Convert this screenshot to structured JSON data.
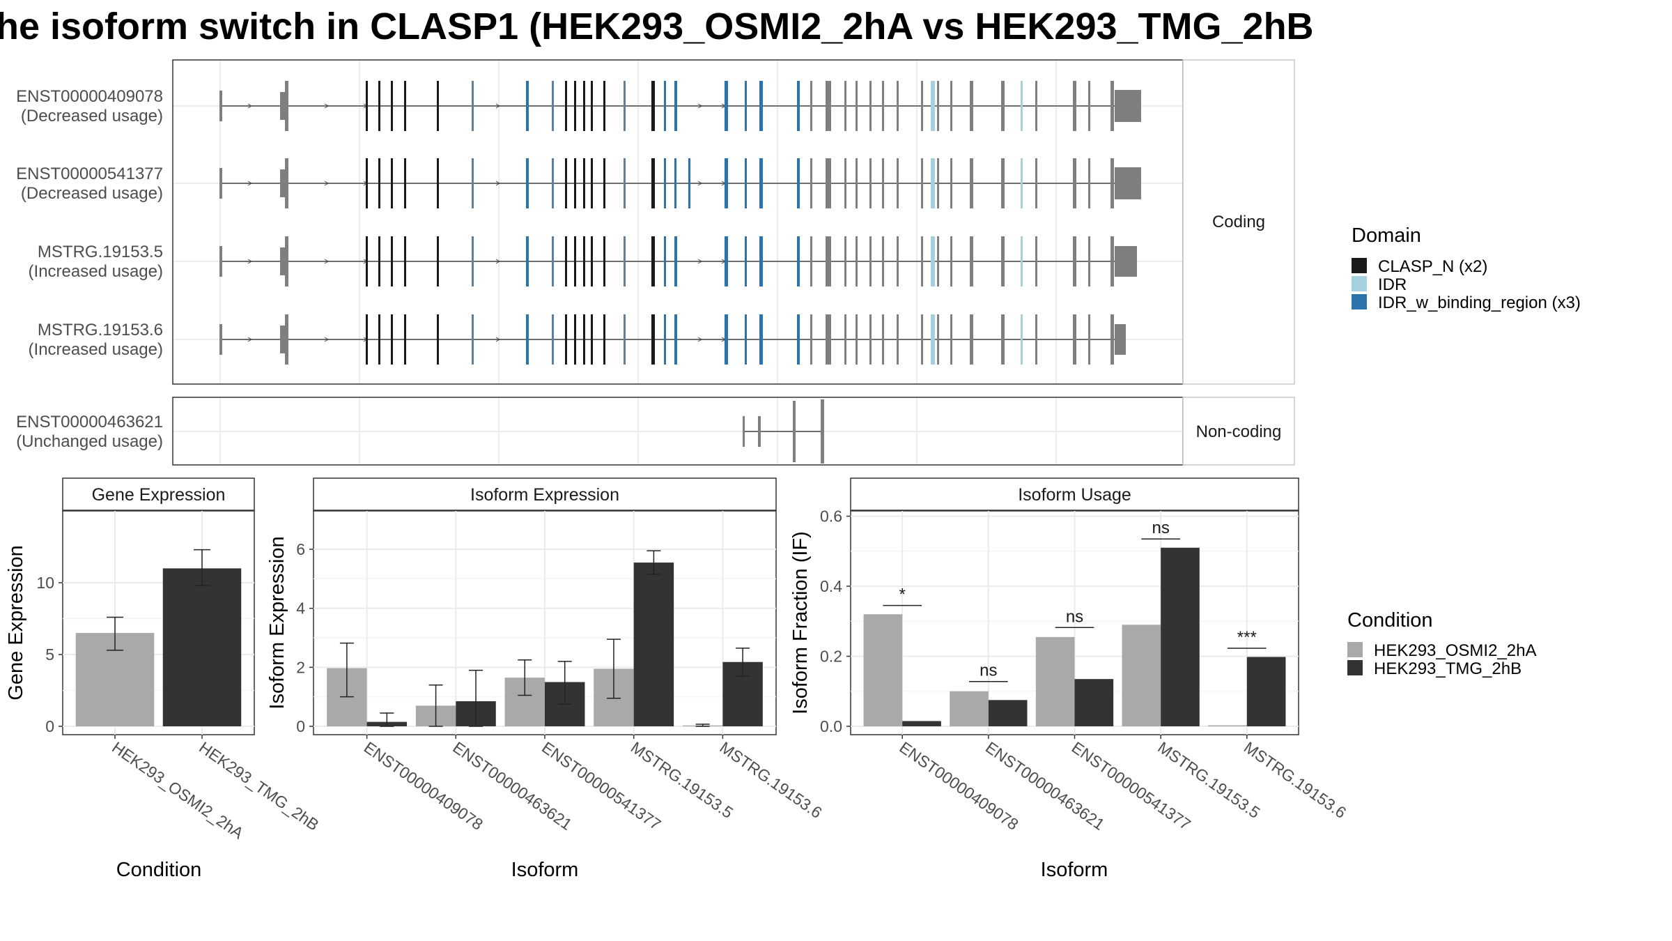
{
  "title": "he isoform switch in CLASP1 (HEK293_OSMI2_2hA vs HEK293_TMG_2hB",
  "colors": {
    "clasp_n": "#1a1a1a",
    "idr": "#a6cfe0",
    "idr_binding": "#2a73ad",
    "grey_block": "#7f7f7f",
    "cond_a": "#a9a9a9",
    "cond_b": "#333333",
    "utr_line": "#7f7f7f",
    "muted_exon": "#5f7f9f"
  },
  "structure": {
    "facet_coding": "Coding",
    "facet_noncoding": "Non-coding",
    "transcripts": [
      {
        "id": "ENST00000409078",
        "usage": "(Decreased usage)",
        "group": "coding",
        "cds_end": "long"
      },
      {
        "id": "ENST00000541377",
        "usage": "(Decreased usage)",
        "group": "coding",
        "cds_end": "long"
      },
      {
        "id": "MSTRG.19153.5",
        "usage": "(Increased usage)",
        "group": "coding",
        "cds_end": "mid"
      },
      {
        "id": "MSTRG.19153.6",
        "usage": "(Increased usage)",
        "group": "coding",
        "cds_end": "short"
      },
      {
        "id": "ENST00000463621",
        "usage": "(Unchanged usage)",
        "group": "noncoding",
        "cds_end": "none"
      }
    ]
  },
  "legend_domain": {
    "title": "Domain",
    "items": [
      {
        "label": "CLASP_N (x2)",
        "color": "#1a1a1a"
      },
      {
        "label": "IDR",
        "color": "#a6cfe0"
      },
      {
        "label": "IDR_w_binding_region (x3)",
        "color": "#2a73ad"
      }
    ]
  },
  "legend_condition": {
    "title": "Condition",
    "items": [
      {
        "label": "HEK293_OSMI2_2hA",
        "color": "#a9a9a9"
      },
      {
        "label": "HEK293_TMG_2hB",
        "color": "#333333"
      }
    ]
  },
  "chart_data": [
    {
      "type": "bar",
      "panel": "Gene Expression",
      "xlabel": "Condition",
      "ylabel": "Gene Expression",
      "ylim": [
        0,
        15
      ],
      "yticks": [
        0,
        5,
        10
      ],
      "categories": [
        "HEK293_OSMI2_2hA",
        "HEK293_TMG_2hB"
      ],
      "values": [
        6.5,
        11.0
      ],
      "errors": [
        [
          5.3,
          7.6
        ],
        [
          9.8,
          12.3
        ]
      ]
    },
    {
      "type": "bar",
      "panel": "Isoform Expression",
      "xlabel": "Isoform",
      "ylabel": "Isoform Expression",
      "ylim": [
        0,
        7.3
      ],
      "yticks": [
        0,
        2,
        4,
        6
      ],
      "categories": [
        "ENST00000409078",
        "ENST00000463621",
        "ENST00000541377",
        "MSTRG.19153.5",
        "MSTRG.19153.6"
      ],
      "series": [
        {
          "name": "HEK293_OSMI2_2hA",
          "values": [
            1.97,
            0.7,
            1.65,
            1.95,
            0.03
          ],
          "errors": [
            [
              1.0,
              2.82
            ],
            [
              0.0,
              1.4
            ],
            [
              1.05,
              2.25
            ],
            [
              0.95,
              2.95
            ],
            [
              0.0,
              0.07
            ]
          ]
        },
        {
          "name": "HEK293_TMG_2hB",
          "values": [
            0.15,
            0.85,
            1.5,
            5.55,
            2.18
          ],
          "errors": [
            [
              0.0,
              0.45
            ],
            [
              0.0,
              1.9
            ],
            [
              0.75,
              2.2
            ],
            [
              5.15,
              5.95
            ],
            [
              1.7,
              2.65
            ]
          ]
        }
      ]
    },
    {
      "type": "bar",
      "panel": "Isoform Usage",
      "xlabel": "Isoform",
      "ylabel": "Isoform Fraction (IF)",
      "ylim": [
        0,
        0.615
      ],
      "yticks": [
        0.0,
        0.2,
        0.4,
        0.6
      ],
      "categories": [
        "ENST00000409078",
        "ENST00000463621",
        "ENST00000541377",
        "MSTRG.19153.5",
        "MSTRG.19153.6"
      ],
      "series": [
        {
          "name": "HEK293_OSMI2_2hA",
          "values": [
            0.32,
            0.1,
            0.255,
            0.29,
            0.003
          ]
        },
        {
          "name": "HEK293_TMG_2hB",
          "values": [
            0.015,
            0.075,
            0.135,
            0.51,
            0.198
          ]
        }
      ],
      "significance": [
        "*",
        "ns",
        "ns",
        "ns",
        "***"
      ],
      "sig_levels": [
        0.345,
        0.128,
        0.282,
        0.535,
        0.223
      ]
    }
  ]
}
